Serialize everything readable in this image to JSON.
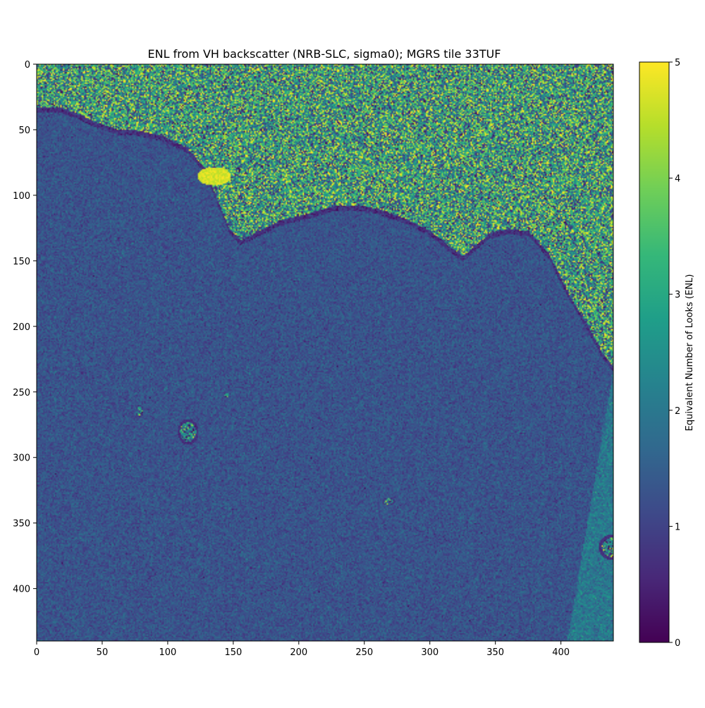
{
  "chart_data": {
    "type": "heatmap",
    "title": "ENL from VH backscatter (NRB-SLC, sigma0); MGRS tile 33TUF",
    "xlabel": "",
    "ylabel": "",
    "xlim": [
      0,
      440
    ],
    "ylim": [
      440,
      0
    ],
    "x_ticks": [
      0,
      50,
      100,
      150,
      200,
      250,
      300,
      350,
      400
    ],
    "y_ticks": [
      0,
      50,
      100,
      150,
      200,
      250,
      300,
      350,
      400
    ],
    "colormap": "viridis",
    "colorbar": {
      "label": "Equivalent Number of Looks (ENL)",
      "range": [
        0,
        5
      ],
      "ticks": [
        0,
        1,
        2,
        3,
        4,
        5
      ]
    },
    "regions": {
      "sea_typical_enl": 1.3,
      "land_typical_enl": 3.0,
      "bright_field_enl": 5.0,
      "right_edge_strip_enl": 2.0
    }
  },
  "colors": {
    "viridis": [
      "#440154",
      "#482878",
      "#3e4989",
      "#31688e",
      "#26828e",
      "#1f9e89",
      "#35b779",
      "#6ece58",
      "#b5de2b",
      "#fde725"
    ]
  }
}
